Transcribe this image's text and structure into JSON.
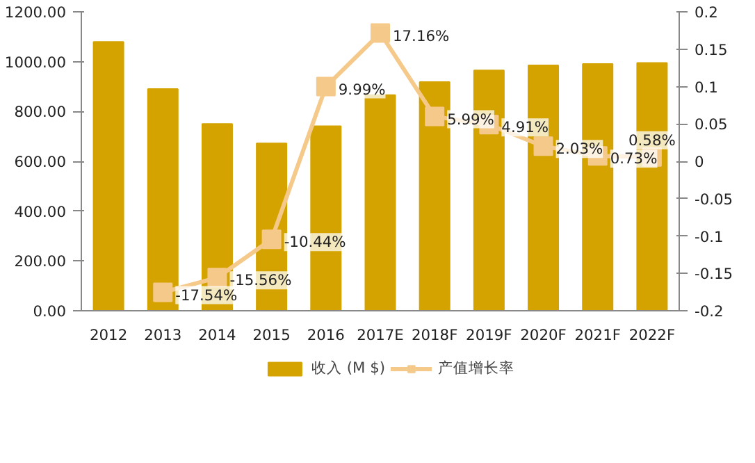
{
  "chart_data": {
    "type": "bar",
    "categories": [
      "2012",
      "2013",
      "2014",
      "2015",
      "2016",
      "2017E",
      "2018F",
      "2019F",
      "2020F",
      "2021F",
      "2022F"
    ],
    "series": [
      {
        "name": "收入 (M $)",
        "color": "#d4a300",
        "values": [
          1079,
          890,
          750,
          672,
          741,
          866,
          918,
          965,
          985,
          991,
          995
        ]
      },
      {
        "name": "产值增长率",
        "type": "line",
        "axis": "y2",
        "color": "#f5c98a",
        "marker": "square",
        "values": [
          null,
          -0.1754,
          -0.1556,
          -0.1044,
          0.0999,
          0.1716,
          0.0599,
          0.0491,
          0.0203,
          0.0073,
          0.0058
        ],
        "value_labels": [
          null,
          "-17.54%",
          "-15.56%",
          "-10.44%",
          "9.99%",
          "17.16%",
          "5.99%",
          "4.91%",
          "2.03%",
          "0.73%",
          "0.58%"
        ]
      }
    ],
    "ylim": [
      0,
      1200
    ],
    "yticks": [
      {
        "value": 0,
        "label": "0.00"
      },
      {
        "value": 200,
        "label": "200.00"
      },
      {
        "value": 400,
        "label": "400.00"
      },
      {
        "value": 600,
        "label": "600.00"
      },
      {
        "value": 800,
        "label": "800.00"
      },
      {
        "value": 1000,
        "label": "1000.00"
      },
      {
        "value": 1200,
        "label": "1200.00"
      }
    ],
    "y2lim": [
      -0.2,
      0.2
    ],
    "y2ticks": [
      -0.2,
      -0.15,
      -0.1,
      -0.05,
      0,
      0.05,
      0.1,
      0.15,
      0.2
    ],
    "grid": false,
    "legend": "bottom"
  }
}
